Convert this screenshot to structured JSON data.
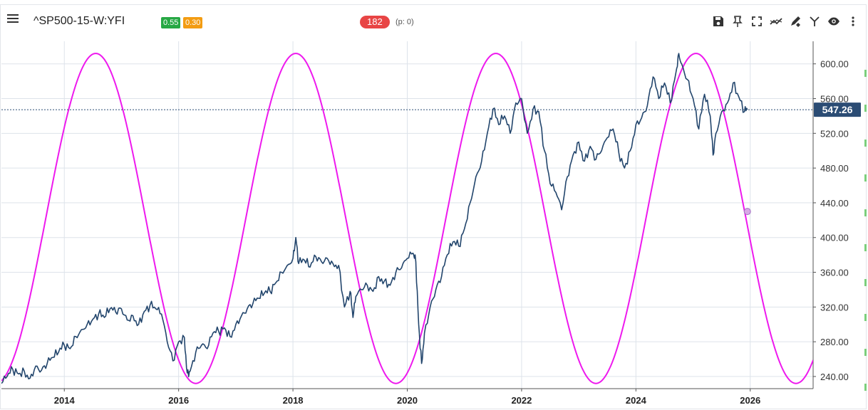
{
  "header": {
    "title": "^SP500-15-W:YFI",
    "badge_green": "0.55",
    "badge_orange": "0.30",
    "pill_count": "182",
    "p_info": "(p: 0)"
  },
  "toolbar": {
    "icons": [
      "save-icon",
      "pin-icon",
      "fullscreen-icon",
      "trendline-icon",
      "draw-icon",
      "fork-icon",
      "eye-icon",
      "more-vertical-icon"
    ]
  },
  "colors": {
    "price": "#22456c",
    "cycle": "#ee19ee",
    "grid": "#dde3ea",
    "price_label_bg": "#2b4c74",
    "cycle_marker": "#d8a9e6"
  },
  "chart_data": {
    "type": "line",
    "x_unit": "year",
    "xlim": [
      2012.9,
      2027.1
    ],
    "ylim": [
      226,
      626
    ],
    "x_ticks": [
      2014,
      2016,
      2018,
      2020,
      2022,
      2024,
      2026
    ],
    "x_tick_labels": [
      "2014",
      "2016",
      "2018",
      "2020",
      "2022",
      "2024",
      "2026"
    ],
    "y_ticks": [
      240,
      280,
      320,
      360,
      400,
      440,
      480,
      520,
      560,
      600
    ],
    "y_tick_labels": [
      "240.00",
      "280.00",
      "320.00",
      "360.00",
      "400.00",
      "440.00",
      "480.00",
      "520.00",
      "560.00",
      "600.00"
    ],
    "last_price": 547.26,
    "last_price_label": "547.26",
    "grid": true,
    "series": [
      {
        "kind": "price",
        "points": [
          [
            2012.9,
            232
          ],
          [
            2013.0,
            240
          ],
          [
            2013.1,
            248
          ],
          [
            2013.2,
            243
          ],
          [
            2013.3,
            246
          ],
          [
            2013.4,
            238
          ],
          [
            2013.5,
            252
          ],
          [
            2013.6,
            247
          ],
          [
            2013.7,
            255
          ],
          [
            2013.8,
            262
          ],
          [
            2013.9,
            268
          ],
          [
            2014.0,
            276
          ],
          [
            2014.1,
            272
          ],
          [
            2014.2,
            286
          ],
          [
            2014.3,
            294
          ],
          [
            2014.4,
            300
          ],
          [
            2014.5,
            306
          ],
          [
            2014.6,
            312
          ],
          [
            2014.7,
            308
          ],
          [
            2014.8,
            318
          ],
          [
            2014.9,
            314
          ],
          [
            2015.0,
            318
          ],
          [
            2015.1,
            305
          ],
          [
            2015.2,
            310
          ],
          [
            2015.3,
            300
          ],
          [
            2015.4,
            315
          ],
          [
            2015.5,
            322
          ],
          [
            2015.6,
            318
          ],
          [
            2015.7,
            312
          ],
          [
            2015.8,
            280
          ],
          [
            2015.9,
            258
          ],
          [
            2016.0,
            280
          ],
          [
            2016.1,
            285
          ],
          [
            2016.15,
            244
          ],
          [
            2016.2,
            246
          ],
          [
            2016.3,
            268
          ],
          [
            2016.4,
            276
          ],
          [
            2016.5,
            272
          ],
          [
            2016.6,
            290
          ],
          [
            2016.7,
            292
          ],
          [
            2016.8,
            296
          ],
          [
            2016.9,
            286
          ],
          [
            2017.0,
            300
          ],
          [
            2017.1,
            310
          ],
          [
            2017.2,
            318
          ],
          [
            2017.3,
            324
          ],
          [
            2017.4,
            330
          ],
          [
            2017.5,
            336
          ],
          [
            2017.6,
            338
          ],
          [
            2017.7,
            348
          ],
          [
            2017.8,
            360
          ],
          [
            2017.9,
            368
          ],
          [
            2018.0,
            376
          ],
          [
            2018.05,
            400
          ],
          [
            2018.1,
            370
          ],
          [
            2018.2,
            374
          ],
          [
            2018.3,
            366
          ],
          [
            2018.4,
            378
          ],
          [
            2018.5,
            372
          ],
          [
            2018.6,
            376
          ],
          [
            2018.7,
            370
          ],
          [
            2018.8,
            368
          ],
          [
            2018.9,
            320
          ],
          [
            2019.0,
            338
          ],
          [
            2019.05,
            308
          ],
          [
            2019.1,
            332
          ],
          [
            2019.2,
            340
          ],
          [
            2019.3,
            345
          ],
          [
            2019.4,
            338
          ],
          [
            2019.5,
            355
          ],
          [
            2019.6,
            350
          ],
          [
            2019.7,
            345
          ],
          [
            2019.8,
            360
          ],
          [
            2019.9,
            365
          ],
          [
            2020.0,
            376
          ],
          [
            2020.1,
            382
          ],
          [
            2020.15,
            372
          ],
          [
            2020.2,
            300
          ],
          [
            2020.25,
            255
          ],
          [
            2020.3,
            290
          ],
          [
            2020.4,
            320
          ],
          [
            2020.5,
            340
          ],
          [
            2020.6,
            355
          ],
          [
            2020.7,
            380
          ],
          [
            2020.8,
            395
          ],
          [
            2020.9,
            390
          ],
          [
            2021.0,
            410
          ],
          [
            2021.1,
            440
          ],
          [
            2021.2,
            470
          ],
          [
            2021.3,
            488
          ],
          [
            2021.4,
            520
          ],
          [
            2021.5,
            548
          ],
          [
            2021.6,
            530
          ],
          [
            2021.7,
            540
          ],
          [
            2021.8,
            520
          ],
          [
            2021.9,
            555
          ],
          [
            2022.0,
            560
          ],
          [
            2022.1,
            520
          ],
          [
            2022.2,
            548
          ],
          [
            2022.3,
            545
          ],
          [
            2022.4,
            500
          ],
          [
            2022.5,
            462
          ],
          [
            2022.6,
            452
          ],
          [
            2022.7,
            432
          ],
          [
            2022.8,
            470
          ],
          [
            2022.9,
            495
          ],
          [
            2023.0,
            510
          ],
          [
            2023.1,
            488
          ],
          [
            2023.2,
            505
          ],
          [
            2023.3,
            490
          ],
          [
            2023.4,
            500
          ],
          [
            2023.5,
            515
          ],
          [
            2023.6,
            525
          ],
          [
            2023.7,
            498
          ],
          [
            2023.8,
            480
          ],
          [
            2023.9,
            500
          ],
          [
            2024.0,
            530
          ],
          [
            2024.1,
            538
          ],
          [
            2024.2,
            552
          ],
          [
            2024.3,
            585
          ],
          [
            2024.4,
            560
          ],
          [
            2024.5,
            578
          ],
          [
            2024.6,
            555
          ],
          [
            2024.7,
            590
          ],
          [
            2024.75,
            612
          ],
          [
            2024.8,
            600
          ],
          [
            2024.9,
            582
          ],
          [
            2025.0,
            560
          ],
          [
            2025.1,
            525
          ],
          [
            2025.2,
            565
          ],
          [
            2025.3,
            540
          ],
          [
            2025.35,
            495
          ],
          [
            2025.4,
            520
          ],
          [
            2025.5,
            545
          ],
          [
            2025.6,
            555
          ],
          [
            2025.7,
            578
          ],
          [
            2025.8,
            562
          ],
          [
            2025.9,
            545
          ],
          [
            2025.95,
            547.26
          ]
        ]
      },
      {
        "kind": "cycle",
        "mid": 422,
        "amplitude": 190,
        "period_years": 3.5,
        "peak_x": 2014.55,
        "x_end": 2027.1,
        "marker": [
          2025.95,
          430
        ]
      }
    ]
  }
}
